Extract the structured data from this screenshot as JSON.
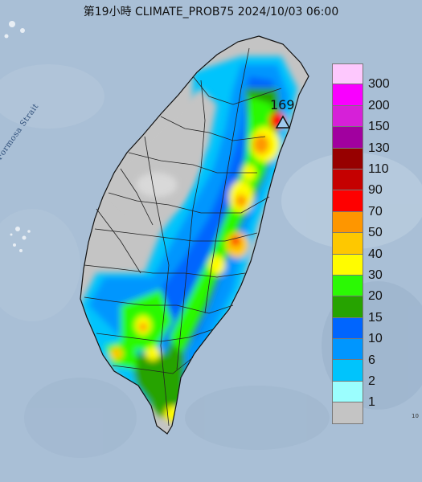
{
  "title": "第19小時  CLIMATE_PROB75 2024/10/03 06:00",
  "sea_label": "Formosa Strait",
  "max_value_label": "169",
  "edge_text": "10",
  "colors": {
    "sea": "#a9bfd6",
    "no_rain": "#c4c4c4",
    "county_line": "#222222",
    "station_marker": "#9ec9ee"
  },
  "legend": {
    "labels": [
      "300",
      "200",
      "150",
      "130",
      "110",
      "90",
      "70",
      "50",
      "40",
      "30",
      "20",
      "15",
      "10",
      "6",
      "2",
      "1"
    ],
    "colors": [
      "#fdc8fd",
      "#f900ff",
      "#d620d8",
      "#a1009f",
      "#970000",
      "#c50000",
      "#fe0000",
      "#fe9600",
      "#fec800",
      "#fffc00",
      "#2bf904",
      "#26a300",
      "#0065fe",
      "#0096fe",
      "#00c4fc",
      "#9bfefe",
      "#c4c4c4"
    ]
  }
}
